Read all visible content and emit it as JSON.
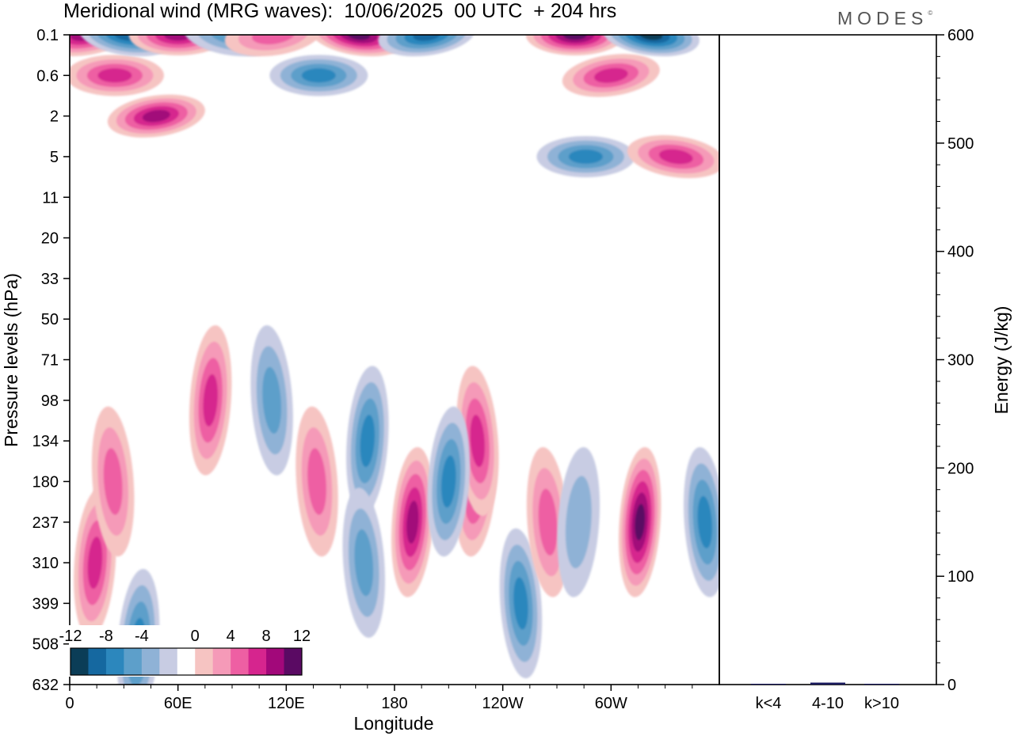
{
  "title": "Meridional wind (MRG waves):  10/06/2025  00 UTC  + 204 hrs",
  "logo": "MODES",
  "logo_mark": "©",
  "colors": {
    "blue_scale": [
      "#0b3d57",
      "#1568a0",
      "#2c87bd",
      "#5d9fca",
      "#8fb2d6",
      "#c8cce3"
    ],
    "pink_scale": [
      "#f6c4c2",
      "#f59ab8",
      "#ee5fa3",
      "#d6258e",
      "#a2087a",
      "#5a0a63"
    ]
  },
  "chart_data": [
    {
      "type": "heatmap",
      "title": "Meridional wind (MRG waves):  10/06/2025  00 UTC  + 204 hrs",
      "xlabel": "Longitude",
      "ylabel": "Pressure levels (hPa)",
      "x_ticks": [
        "0",
        "60E",
        "120E",
        "180",
        "120W",
        "60W"
      ],
      "x_tick_values": [
        0,
        60,
        120,
        180,
        240,
        300
      ],
      "x_range": [
        0,
        360
      ],
      "y_ticks": [
        "0.1",
        "0.6",
        "2",
        "5",
        "11",
        "20",
        "33",
        "50",
        "71",
        "98",
        "134",
        "180",
        "237",
        "310",
        "399",
        "508",
        "632"
      ],
      "colorbar": {
        "labels": [
          "-12",
          "-8",
          "-4",
          "0",
          "4",
          "8",
          "12"
        ],
        "levels": [
          -14,
          -12,
          -10,
          -8,
          -6,
          -4,
          -2,
          2,
          4,
          6,
          8,
          10,
          12,
          14
        ],
        "placement": "bottom-left"
      },
      "features": [
        {
          "lon": 8,
          "p": "0.3",
          "value": 9
        },
        {
          "lon": 25,
          "p": "0.6",
          "value": 8
        },
        {
          "lon": 32,
          "p": "0.3",
          "value": -9
        },
        {
          "lon": 48,
          "p": "2",
          "value": 9
        },
        {
          "lon": 60,
          "p": "0.1",
          "value": 9
        },
        {
          "lon": 90,
          "p": "0.1",
          "value": -6
        },
        {
          "lon": 113,
          "p": "1",
          "value": 5
        },
        {
          "lon": 138,
          "p": "0.6",
          "value": -8
        },
        {
          "lon": 160,
          "p": "0.1",
          "value": 11
        },
        {
          "lon": 198,
          "p": "0.1",
          "value": -9
        },
        {
          "lon": 280,
          "p": "0.3",
          "value": 13
        },
        {
          "lon": 322,
          "p": "0.2",
          "value": -12
        },
        {
          "lon": 300,
          "p": "0.6",
          "value": 7
        },
        {
          "lon": 286,
          "p": "5",
          "value": -7
        },
        {
          "lon": 336,
          "p": "5",
          "value": 8
        },
        {
          "lon": 78,
          "p": "98",
          "value": 7
        },
        {
          "lon": 112,
          "p": "98",
          "value": -5
        },
        {
          "lon": 165,
          "p": "134",
          "value": -8
        },
        {
          "lon": 137,
          "p": "180",
          "value": 6
        },
        {
          "lon": 190,
          "p": "237",
          "value": 9
        },
        {
          "lon": 163,
          "p": "310",
          "value": -6
        },
        {
          "lon": 225,
          "p": "180",
          "value": 7
        },
        {
          "lon": 226,
          "p": "134",
          "value": 7
        },
        {
          "lon": 210,
          "p": "180",
          "value": -7
        },
        {
          "lon": 250,
          "p": "399",
          "value": -8
        },
        {
          "lon": 316,
          "p": "237",
          "value": 11
        },
        {
          "lon": 352,
          "p": "237",
          "value": -7
        },
        {
          "lon": 14,
          "p": "310",
          "value": 7
        },
        {
          "lon": 24,
          "p": "180",
          "value": 5
        },
        {
          "lon": 38,
          "p": "508",
          "value": -7
        },
        {
          "lon": 265,
          "p": "237",
          "value": 6
        },
        {
          "lon": 282,
          "p": "237",
          "value": -4
        }
      ]
    },
    {
      "type": "bar",
      "categories": [
        "k<4",
        "4-10",
        "k>10"
      ],
      "values": [
        0.6,
        1.8,
        0.7
      ],
      "ylabel": "Energy (J/kg)",
      "ylim": [
        0,
        600
      ],
      "y_ticks": [
        "0",
        "100",
        "200",
        "300",
        "400",
        "500",
        "600"
      ]
    }
  ]
}
